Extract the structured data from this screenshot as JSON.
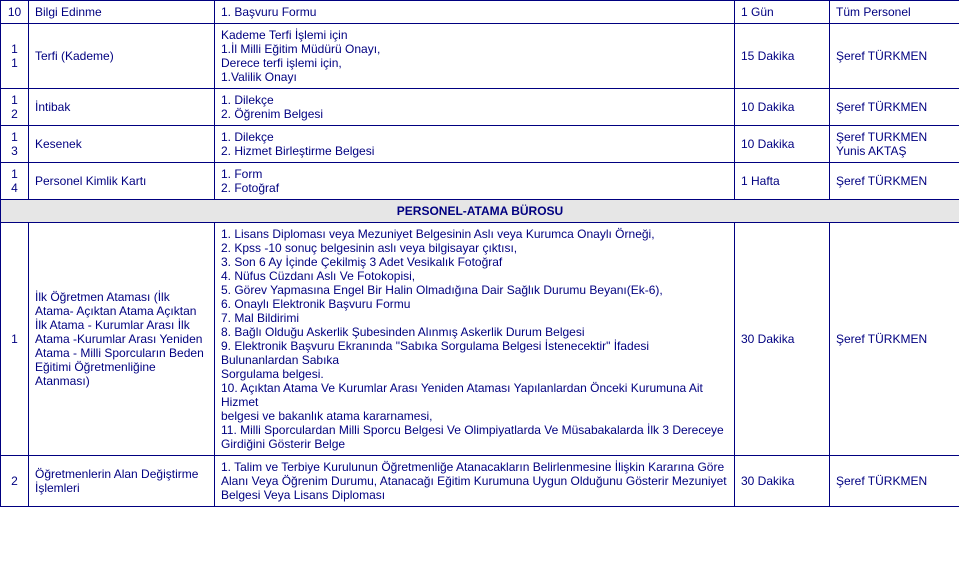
{
  "colors": {
    "text": "#000080",
    "border": "#000080",
    "headerBg": "#e6e6e6",
    "bg": "#ffffff"
  },
  "rows": [
    {
      "num": "10",
      "name": "Bilgi Edinme",
      "desc": "1. Başvuru Formu",
      "dur": "1 Gün",
      "resp": "Tüm Personel"
    },
    {
      "num": "1\n1",
      "name": "Terfi (Kademe)",
      "desc": "Kademe Terfi İşlemi için\n1.İl Milli Eğitim Müdürü Onayı,\nDerece terfi işlemi için,\n1.Valilik Onayı",
      "dur": "15 Dakika",
      "resp": "Şeref TÜRKMEN"
    },
    {
      "num": "1\n2",
      "name": "İntibak",
      "desc": "1. Dilekçe\n2. Öğrenim Belgesi",
      "dur": "10 Dakika",
      "resp": "Şeref TÜRKMEN"
    },
    {
      "num": "1\n3",
      "name": "Kesenek",
      "desc": "1. Dilekçe\n2. Hizmet Birleştirme Belgesi",
      "dur": "10 Dakika",
      "resp": "Şeref TURKMEN\nYunis  AKTAŞ"
    },
    {
      "num": "1\n4",
      "name": "Personel Kimlik Kartı",
      "desc": "1. Form\n2. Fotoğraf",
      "dur": "1 Hafta",
      "resp": "Şeref TÜRKMEN"
    }
  ],
  "sectionHeader": "PERSONEL-ATAMA BÜROSU",
  "rows2": [
    {
      "num": "1",
      "name": "İlk Öğretmen Ataması (İlk Atama- Açıktan Atama Açıktan İlk Atama - Kurumlar Arası İlk Atama -Kurumlar Arası Yeniden Atama - Milli Sporcuların Beden Eğitimi Öğretmenliğine Atanması)",
      "desc": "1. Lisans Diploması veya Mezuniyet Belgesinin Aslı veya Kurumca Onaylı Örneği,\n2. Kpss -10 sonuç belgesinin aslı veya bilgisayar çıktısı,\n3. Son 6 Ay İçinde Çekilmiş 3 Adet Vesikalık Fotoğraf\n4. Nüfus Cüzdanı Aslı Ve Fotokopisi,\n5. Görev Yapmasına Engel Bir Halin Olmadığına Dair Sağlık Durumu Beyanı(Ek-6),\n6. Onaylı Elektronik Başvuru Formu\n7. Mal Bildirimi\n8. Bağlı Olduğu Askerlik Şubesinden Alınmış Askerlik Durum Belgesi\n9. Elektronik Başvuru Ekranında \"Sabıka Sorgulama Belgesi İstenecektir\" İfadesi Bulunanlardan Sabıka\nSorgulama belgesi.\n10. Açıktan Atama Ve Kurumlar Arası Yeniden Ataması Yapılanlardan Önceki Kurumuna Ait Hizmet\nbelgesi ve bakanlık atama kararnamesi,\n11. Milli Sporculardan Milli Sporcu Belgesi Ve Olimpiyatlarda Ve Müsabakalarda İlk 3 Dereceye Girdiğini Gösterir Belge",
      "dur": "30 Dakika",
      "resp": "Şeref TÜRKMEN"
    },
    {
      "num": "2",
      "name": "Öğretmenlerin Alan Değiştirme İşlemleri",
      "desc": "1. Talim ve Terbiye Kurulunun Öğretmenliğe Atanacakların Belirlenmesine İlişkin Kararına Göre Alanı Veya Öğrenim Durumu, Atanacağı Eğitim Kurumuna Uygun Olduğunu Gösterir Mezuniyet Belgesi Veya Lisans Diploması",
      "dur": "30 Dakika",
      "resp": "Şeref TÜRKMEN"
    }
  ]
}
